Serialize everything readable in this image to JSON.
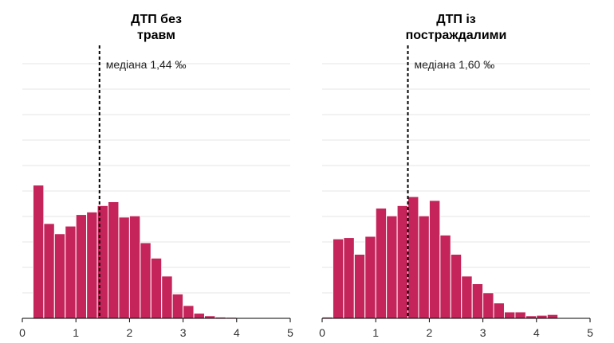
{
  "chart_data": [
    {
      "type": "bar",
      "title": "ДТП без травм",
      "title_lines": [
        "ДТП без",
        "травм"
      ],
      "x_range": [
        0,
        5
      ],
      "ylim": [
        0,
        1.0
      ],
      "grid": true,
      "x_ticks": [
        "0",
        "1",
        "2",
        "3",
        "4",
        "5"
      ],
      "bin_width": 0.2,
      "bins": [
        {
          "x0": 0.2,
          "x1": 0.4,
          "value": 0.52
        },
        {
          "x0": 0.4,
          "x1": 0.6,
          "value": 0.37
        },
        {
          "x0": 0.6,
          "x1": 0.8,
          "value": 0.33
        },
        {
          "x0": 0.8,
          "x1": 1.0,
          "value": 0.36
        },
        {
          "x0": 1.0,
          "x1": 1.2,
          "value": 0.405
        },
        {
          "x0": 1.2,
          "x1": 1.4,
          "value": 0.415
        },
        {
          "x0": 1.4,
          "x1": 1.6,
          "value": 0.44
        },
        {
          "x0": 1.6,
          "x1": 1.8,
          "value": 0.455
        },
        {
          "x0": 1.8,
          "x1": 2.0,
          "value": 0.395
        },
        {
          "x0": 2.0,
          "x1": 2.2,
          "value": 0.4
        },
        {
          "x0": 2.2,
          "x1": 2.4,
          "value": 0.295
        },
        {
          "x0": 2.4,
          "x1": 2.6,
          "value": 0.235
        },
        {
          "x0": 2.6,
          "x1": 2.8,
          "value": 0.165
        },
        {
          "x0": 2.8,
          "x1": 3.0,
          "value": 0.095
        },
        {
          "x0": 3.0,
          "x1": 3.2,
          "value": 0.05
        },
        {
          "x0": 3.2,
          "x1": 3.4,
          "value": 0.02
        },
        {
          "x0": 3.4,
          "x1": 3.6,
          "value": 0.01
        },
        {
          "x0": 3.6,
          "x1": 3.8,
          "value": 0.005
        },
        {
          "x0": 3.8,
          "x1": 4.0,
          "value": 0.004
        },
        {
          "x0": 4.0,
          "x1": 4.2,
          "value": 0.002
        }
      ],
      "median": 1.44,
      "median_label": "медіана 1,44 ‰"
    },
    {
      "type": "bar",
      "title": "ДТП із постраждалими",
      "title_lines": [
        "ДТП із",
        "постраждалими"
      ],
      "x_range": [
        0,
        5
      ],
      "ylim": [
        0,
        1.0
      ],
      "grid": true,
      "x_ticks": [
        "0",
        "1",
        "2",
        "3",
        "4",
        "5"
      ],
      "bin_width": 0.2,
      "bins": [
        {
          "x0": 0.0,
          "x1": 0.2,
          "value": 0.005
        },
        {
          "x0": 0.2,
          "x1": 0.4,
          "value": 0.31
        },
        {
          "x0": 0.4,
          "x1": 0.6,
          "value": 0.315
        },
        {
          "x0": 0.6,
          "x1": 0.8,
          "value": 0.25
        },
        {
          "x0": 0.8,
          "x1": 1.0,
          "value": 0.32
        },
        {
          "x0": 1.0,
          "x1": 1.2,
          "value": 0.43
        },
        {
          "x0": 1.2,
          "x1": 1.4,
          "value": 0.4
        },
        {
          "x0": 1.4,
          "x1": 1.6,
          "value": 0.44
        },
        {
          "x0": 1.6,
          "x1": 1.8,
          "value": 0.475
        },
        {
          "x0": 1.8,
          "x1": 2.0,
          "value": 0.4
        },
        {
          "x0": 2.0,
          "x1": 2.2,
          "value": 0.46
        },
        {
          "x0": 2.2,
          "x1": 2.4,
          "value": 0.325
        },
        {
          "x0": 2.4,
          "x1": 2.6,
          "value": 0.25
        },
        {
          "x0": 2.6,
          "x1": 2.8,
          "value": 0.165
        },
        {
          "x0": 2.8,
          "x1": 3.0,
          "value": 0.135
        },
        {
          "x0": 3.0,
          "x1": 3.2,
          "value": 0.1
        },
        {
          "x0": 3.2,
          "x1": 3.4,
          "value": 0.06
        },
        {
          "x0": 3.4,
          "x1": 3.6,
          "value": 0.025
        },
        {
          "x0": 3.6,
          "x1": 3.8,
          "value": 0.025
        },
        {
          "x0": 3.8,
          "x1": 4.0,
          "value": 0.01
        },
        {
          "x0": 4.0,
          "x1": 4.2,
          "value": 0.012
        },
        {
          "x0": 4.2,
          "x1": 4.4,
          "value": 0.015
        }
      ],
      "median": 1.6,
      "median_label": "медіана 1,60 ‰"
    }
  ],
  "colors": {
    "bar": "#c4245a",
    "grid": "#e6e6e6",
    "median_line": "#000000"
  }
}
